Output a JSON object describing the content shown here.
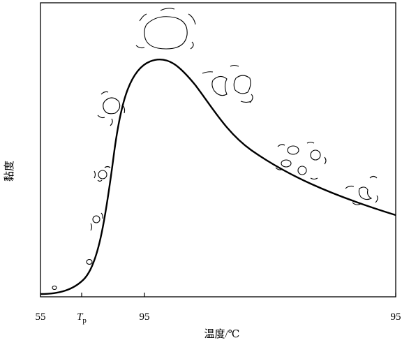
{
  "y_label": "黏度",
  "x_label": "温度/℃",
  "x_ticks": [
    "55",
    {
      "main": "T",
      "sub": "p"
    },
    "95",
    "95"
  ]
}
